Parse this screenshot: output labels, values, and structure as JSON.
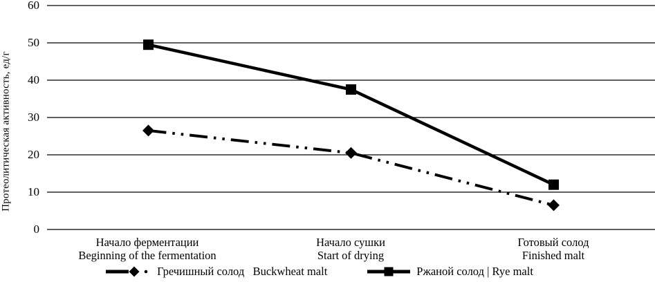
{
  "chart_data": {
    "type": "line",
    "title": "",
    "xlabel": "",
    "ylabel": "Протеолитическая активность, ед/г",
    "ylim": [
      0,
      60
    ],
    "yticks": [
      0,
      10,
      20,
      30,
      40,
      50,
      60
    ],
    "grid": true,
    "legend_position": "bottom",
    "background_color": "#ffffff",
    "axis_color": "#000000",
    "categories": [
      {
        "ru": "Начало ферментации",
        "en": "Beginning of the fermentation"
      },
      {
        "ru": "Начало сушки",
        "en": "Start of drying"
      },
      {
        "ru": "Готовый солод",
        "en": "Finished malt"
      }
    ],
    "series": [
      {
        "key": "buckwheat",
        "name": "Гречишный солод   Buckwheat malt",
        "values": [
          26.5,
          20.5,
          6.5
        ],
        "style": "dash-dot-dot",
        "marker": "diamond",
        "color": "#000000"
      },
      {
        "key": "rye",
        "name": "Ржаной солод | Rye malt",
        "values": [
          49.5,
          37.5,
          12
        ],
        "style": "solid",
        "marker": "square",
        "color": "#000000"
      }
    ]
  }
}
